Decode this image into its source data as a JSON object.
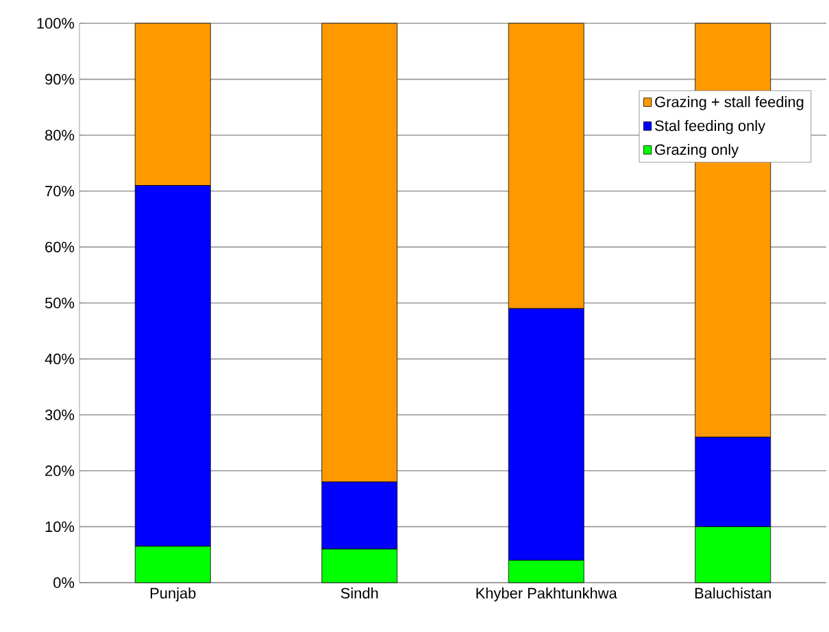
{
  "chart_data": {
    "type": "bar",
    "stacked": true,
    "categories": [
      "Punjab",
      "Sindh",
      "Khyber Pakhtunkhwa",
      "Baluchistan"
    ],
    "series": [
      {
        "name": "Grazing only",
        "color": "#00ff00",
        "values": [
          6.5,
          6,
          4,
          10
        ]
      },
      {
        "name": "Stal feeding only",
        "color": "#0000ff",
        "values": [
          64.5,
          12,
          45,
          16
        ]
      },
      {
        "name": "Grazing + stall feeding",
        "color": "#ff9900",
        "values": [
          29,
          82,
          51,
          74
        ]
      }
    ],
    "ylim": [
      0,
      100
    ],
    "yticks": [
      {
        "value": 0,
        "label": "0%"
      },
      {
        "value": 10,
        "label": "10%"
      },
      {
        "value": 20,
        "label": "20%"
      },
      {
        "value": 30,
        "label": "30%"
      },
      {
        "value": 40,
        "label": "40%"
      },
      {
        "value": 50,
        "label": "50%"
      },
      {
        "value": 60,
        "label": "60%"
      },
      {
        "value": 70,
        "label": "70%"
      },
      {
        "value": 80,
        "label": "80%"
      },
      {
        "value": 90,
        "label": "90%"
      },
      {
        "value": 100,
        "label": "100%"
      }
    ],
    "grid": "y",
    "legend": "top right"
  }
}
